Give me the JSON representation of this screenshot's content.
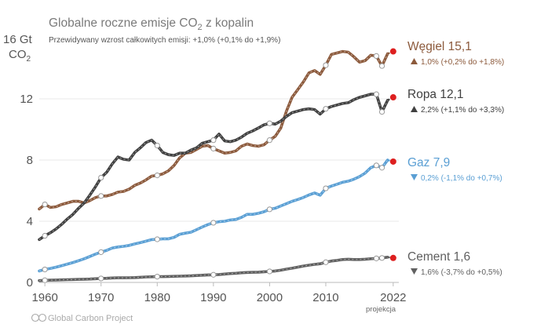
{
  "chart_data": {
    "type": "line",
    "title_main": "Globalne roczne emisje CO",
    "title_sub": "2",
    "title_tail": " z kopalin",
    "subtitle": "Przewidywany wzrost całkowitych emisji: +1,0% (+0,1% do +1,9%)",
    "y_unit_top": "16 Gt",
    "y_unit_bottom_main": "CO",
    "y_unit_bottom_sub": "2",
    "ylim": [
      0,
      16
    ],
    "xlim": [
      1959,
      2023
    ],
    "y_ticks": [
      "0",
      "4",
      "8",
      "12"
    ],
    "y_tick_values": [
      0,
      4,
      8,
      12
    ],
    "x_ticks": [
      "1960",
      "1970",
      "1980",
      "1990",
      "2000",
      "2010",
      "2022"
    ],
    "x_tick_values": [
      1960,
      1970,
      1980,
      1990,
      2000,
      2010,
      2022
    ],
    "projection_label": "projekcja",
    "source": "Global Carbon Project",
    "source_icon": "creative-commons-icon",
    "series": [
      {
        "key": "coal",
        "label": "Węgiel 15,1",
        "change": "1,0% (+0,2% do +1,8%)",
        "direction": "up",
        "color": "#8c5a3c",
        "x": [
          1959,
          1960,
          1961,
          1962,
          1963,
          1964,
          1965,
          1966,
          1967,
          1968,
          1969,
          1970,
          1971,
          1972,
          1973,
          1974,
          1975,
          1976,
          1977,
          1978,
          1979,
          1980,
          1981,
          1982,
          1983,
          1984,
          1985,
          1986,
          1987,
          1988,
          1989,
          1990,
          1991,
          1992,
          1993,
          1994,
          1995,
          1996,
          1997,
          1998,
          1999,
          2000,
          2001,
          2002,
          2003,
          2004,
          2005,
          2006,
          2007,
          2008,
          2009,
          2010,
          2011,
          2012,
          2013,
          2014,
          2015,
          2016,
          2017,
          2018,
          2019,
          2020,
          2021
        ],
        "values": [
          4.8,
          5.1,
          4.9,
          4.95,
          5.1,
          5.2,
          5.3,
          5.3,
          5.2,
          5.35,
          5.55,
          5.65,
          5.65,
          5.75,
          5.9,
          5.95,
          6.1,
          6.35,
          6.5,
          6.7,
          6.95,
          7.0,
          7.1,
          7.3,
          7.65,
          8.15,
          8.45,
          8.5,
          8.7,
          8.9,
          8.95,
          8.75,
          8.6,
          8.45,
          8.5,
          8.6,
          8.9,
          9.05,
          8.95,
          8.9,
          9.0,
          9.3,
          9.55,
          10.1,
          11.2,
          12.1,
          12.6,
          13.1,
          13.7,
          13.85,
          13.6,
          14.2,
          14.9,
          15.0,
          15.1,
          15.05,
          14.75,
          14.4,
          14.5,
          14.85,
          14.8,
          14.15,
          14.95
        ],
        "projection": 15.1
      },
      {
        "key": "oil",
        "label": "Ropa 12,1",
        "change": "2,2% (+1,1% do +3,3%)",
        "direction": "up",
        "color": "#404040",
        "x": [
          1959,
          1960,
          1961,
          1962,
          1963,
          1964,
          1965,
          1966,
          1967,
          1968,
          1969,
          1970,
          1971,
          1972,
          1973,
          1974,
          1975,
          1976,
          1977,
          1978,
          1979,
          1980,
          1981,
          1982,
          1983,
          1984,
          1985,
          1986,
          1987,
          1988,
          1989,
          1990,
          1991,
          1992,
          1993,
          1994,
          1995,
          1996,
          1997,
          1998,
          1999,
          2000,
          2001,
          2002,
          2003,
          2004,
          2005,
          2006,
          2007,
          2008,
          2009,
          2010,
          2011,
          2012,
          2013,
          2014,
          2015,
          2016,
          2017,
          2018,
          2019,
          2020,
          2021
        ],
        "values": [
          2.8,
          3.05,
          3.25,
          3.5,
          3.8,
          4.15,
          4.45,
          4.85,
          5.2,
          5.7,
          6.25,
          6.85,
          7.2,
          7.75,
          8.2,
          8.05,
          8.0,
          8.5,
          8.8,
          9.15,
          9.3,
          8.95,
          8.5,
          8.35,
          8.3,
          8.45,
          8.45,
          8.65,
          8.8,
          9.1,
          9.2,
          9.3,
          9.7,
          9.25,
          9.2,
          9.3,
          9.5,
          9.75,
          9.9,
          10.1,
          10.3,
          10.4,
          10.35,
          10.55,
          10.85,
          11.1,
          11.2,
          11.3,
          11.35,
          11.3,
          11.0,
          11.35,
          11.5,
          11.6,
          11.7,
          11.75,
          11.95,
          12.1,
          12.2,
          12.3,
          12.3,
          11.15,
          11.9
        ],
        "projection": 12.1
      },
      {
        "key": "gas",
        "label": "Gaz 7,9",
        "change": "0,2% (-1,1% do +0,7%)",
        "direction": "down",
        "color": "#5a9fd4",
        "x": [
          1959,
          1960,
          1961,
          1962,
          1963,
          1964,
          1965,
          1966,
          1967,
          1968,
          1969,
          1970,
          1971,
          1972,
          1973,
          1974,
          1975,
          1976,
          1977,
          1978,
          1979,
          1980,
          1981,
          1982,
          1983,
          1984,
          1985,
          1986,
          1987,
          1988,
          1989,
          1990,
          1991,
          1992,
          1993,
          1994,
          1995,
          1996,
          1997,
          1998,
          1999,
          2000,
          2001,
          2002,
          2003,
          2004,
          2005,
          2006,
          2007,
          2008,
          2009,
          2010,
          2011,
          2012,
          2013,
          2014,
          2015,
          2016,
          2017,
          2018,
          2019,
          2020,
          2021
        ],
        "values": [
          0.75,
          0.85,
          0.92,
          1.0,
          1.1,
          1.2,
          1.3,
          1.42,
          1.55,
          1.7,
          1.85,
          1.98,
          2.1,
          2.25,
          2.32,
          2.36,
          2.42,
          2.52,
          2.6,
          2.7,
          2.8,
          2.82,
          2.85,
          2.85,
          2.95,
          3.15,
          3.22,
          3.28,
          3.45,
          3.62,
          3.78,
          3.9,
          3.97,
          4.0,
          4.08,
          4.12,
          4.25,
          4.45,
          4.45,
          4.52,
          4.62,
          4.78,
          4.85,
          5.0,
          5.15,
          5.3,
          5.42,
          5.55,
          5.72,
          5.85,
          5.7,
          6.15,
          6.3,
          6.42,
          6.55,
          6.62,
          6.75,
          6.92,
          7.15,
          7.5,
          7.65,
          7.5,
          8.0
        ],
        "projection": 7.9
      },
      {
        "key": "cement",
        "label": "Cement 1,6",
        "change": "1,6% (-3,7% do +0,5%)",
        "direction": "down",
        "color": "#606060",
        "x": [
          1959,
          1960,
          1961,
          1962,
          1963,
          1964,
          1965,
          1966,
          1967,
          1968,
          1969,
          1970,
          1971,
          1972,
          1973,
          1974,
          1975,
          1976,
          1977,
          1978,
          1979,
          1980,
          1981,
          1982,
          1983,
          1984,
          1985,
          1986,
          1987,
          1988,
          1989,
          1990,
          1991,
          1992,
          1993,
          1994,
          1995,
          1996,
          1997,
          1998,
          1999,
          2000,
          2001,
          2002,
          2003,
          2004,
          2005,
          2006,
          2007,
          2008,
          2009,
          2010,
          2011,
          2012,
          2013,
          2014,
          2015,
          2016,
          2017,
          2018,
          2019,
          2020,
          2021
        ],
        "values": [
          0.12,
          0.14,
          0.15,
          0.16,
          0.17,
          0.18,
          0.19,
          0.2,
          0.21,
          0.22,
          0.24,
          0.26,
          0.27,
          0.29,
          0.3,
          0.3,
          0.31,
          0.32,
          0.34,
          0.36,
          0.37,
          0.38,
          0.38,
          0.39,
          0.4,
          0.41,
          0.42,
          0.43,
          0.45,
          0.47,
          0.49,
          0.5,
          0.52,
          0.55,
          0.58,
          0.6,
          0.63,
          0.65,
          0.66,
          0.67,
          0.7,
          0.72,
          0.75,
          0.8,
          0.87,
          0.93,
          1.0,
          1.07,
          1.13,
          1.18,
          1.22,
          1.32,
          1.4,
          1.44,
          1.5,
          1.52,
          1.5,
          1.5,
          1.52,
          1.55,
          1.57,
          1.6,
          1.65
        ],
        "projection": 1.6
      }
    ]
  }
}
